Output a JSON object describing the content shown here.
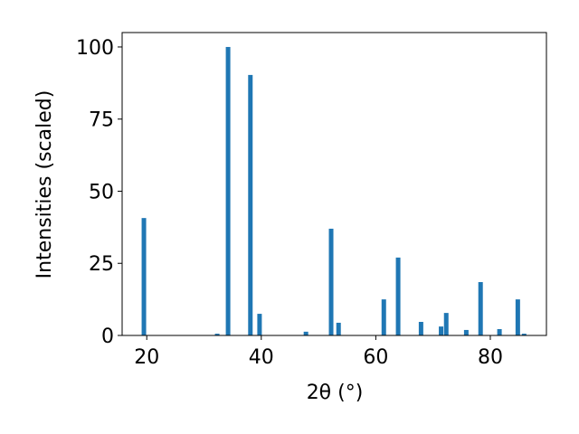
{
  "chart_data": {
    "type": "bar",
    "x_label": "2θ (°)",
    "y_label": "Intensities (scaled)",
    "x": [
      19.5,
      32.3,
      34.2,
      38.1,
      39.7,
      47.8,
      52.2,
      53.5,
      61.4,
      63.9,
      67.9,
      71.4,
      72.3,
      75.8,
      78.3,
      81.6,
      84.8,
      85.9
    ],
    "values": [
      40.7,
      0.6,
      100,
      90.3,
      7.5,
      1.3,
      37,
      4.4,
      12.5,
      27,
      4.7,
      3.1,
      7.8,
      1.9,
      18.5,
      2.2,
      12.5,
      0.6
    ],
    "color": "#1f77b4",
    "xlim": [
      15.7,
      89.8
    ],
    "xticks": [
      20,
      40,
      60,
      80
    ],
    "ylim": [
      0,
      105
    ],
    "yticks": [
      0,
      25,
      50,
      75,
      100
    ]
  }
}
